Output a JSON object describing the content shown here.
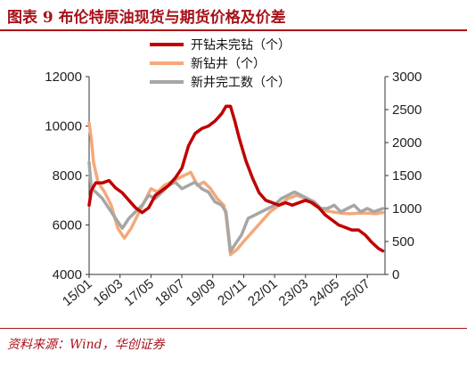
{
  "figure": {
    "title": "图表 9  布伦特原油现货与期货价格及价差",
    "source": "资料来源：Wind，华创证券",
    "accent_color": "#a8121a"
  },
  "chart_data": {
    "type": "line",
    "title": "图表 9  布伦特原油现货与期货价格及价差",
    "xlabel": "",
    "ylabel_left": "",
    "ylabel_right": "",
    "x_ticks": [
      "15/01",
      "16/03",
      "17/05",
      "18/07",
      "19/09",
      "20/11",
      "22/01",
      "23/03",
      "24/05",
      "25/07"
    ],
    "x_range": [
      "2015-01",
      "2026-03"
    ],
    "ylim_left": [
      4000,
      12000
    ],
    "y_ticks_left": [
      "4000",
      "6000",
      "8000",
      "10000",
      "12000"
    ],
    "ylim_right": [
      0,
      3000
    ],
    "y_ticks_right": [
      "0",
      "500",
      "1000",
      "1500",
      "2000",
      "2500",
      "3000"
    ],
    "grid": false,
    "legend_position": "top-center",
    "series": [
      {
        "name": "开钻未完钻（个）",
        "axis": "left",
        "color": "#c00000",
        "points": [
          [
            "2015-01",
            6800
          ],
          [
            "2015-02",
            7400
          ],
          [
            "2015-04",
            7700
          ],
          [
            "2015-07",
            7700
          ],
          [
            "2015-10",
            7800
          ],
          [
            "2016-01",
            7500
          ],
          [
            "2016-04",
            7300
          ],
          [
            "2016-07",
            7000
          ],
          [
            "2016-10",
            6700
          ],
          [
            "2017-01",
            6500
          ],
          [
            "2017-04",
            6700
          ],
          [
            "2017-07",
            7200
          ],
          [
            "2017-10",
            7400
          ],
          [
            "2018-01",
            7600
          ],
          [
            "2018-04",
            7900
          ],
          [
            "2018-07",
            8300
          ],
          [
            "2018-10",
            9200
          ],
          [
            "2019-01",
            9700
          ],
          [
            "2019-04",
            9900
          ],
          [
            "2019-07",
            10000
          ],
          [
            "2019-10",
            10200
          ],
          [
            "2020-01",
            10500
          ],
          [
            "2020-03",
            10800
          ],
          [
            "2020-05",
            10800
          ],
          [
            "2020-07",
            10200
          ],
          [
            "2020-09",
            9500
          ],
          [
            "2020-12",
            8600
          ],
          [
            "2021-03",
            7900
          ],
          [
            "2021-06",
            7300
          ],
          [
            "2021-09",
            7000
          ],
          [
            "2021-12",
            6900
          ],
          [
            "2022-03",
            6800
          ],
          [
            "2022-06",
            6900
          ],
          [
            "2022-09",
            6800
          ],
          [
            "2022-12",
            6900
          ],
          [
            "2023-03",
            7000
          ],
          [
            "2023-06",
            6900
          ],
          [
            "2023-09",
            6700
          ],
          [
            "2023-12",
            6400
          ],
          [
            "2024-03",
            6200
          ],
          [
            "2024-06",
            6000
          ],
          [
            "2024-09",
            5900
          ],
          [
            "2024-12",
            5800
          ],
          [
            "2025-03",
            5800
          ],
          [
            "2025-06",
            5600
          ],
          [
            "2025-09",
            5300
          ],
          [
            "2025-12",
            5050
          ],
          [
            "2026-02",
            4950
          ]
        ]
      },
      {
        "name": "新钻井（个）",
        "axis": "right",
        "color": "#f4a97a",
        "points": [
          [
            "2015-01",
            2300
          ],
          [
            "2015-02",
            2050
          ],
          [
            "2015-03",
            1700
          ],
          [
            "2015-05",
            1400
          ],
          [
            "2015-08",
            1250
          ],
          [
            "2015-11",
            1050
          ],
          [
            "2016-02",
            700
          ],
          [
            "2016-05",
            550
          ],
          [
            "2016-08",
            700
          ],
          [
            "2016-11",
            900
          ],
          [
            "2017-02",
            1100
          ],
          [
            "2017-05",
            1300
          ],
          [
            "2017-08",
            1250
          ],
          [
            "2017-11",
            1350
          ],
          [
            "2018-02",
            1400
          ],
          [
            "2018-05",
            1450
          ],
          [
            "2018-08",
            1500
          ],
          [
            "2018-11",
            1550
          ],
          [
            "2019-02",
            1350
          ],
          [
            "2019-05",
            1400
          ],
          [
            "2019-08",
            1300
          ],
          [
            "2019-11",
            1150
          ],
          [
            "2020-02",
            1050
          ],
          [
            "2020-03",
            900
          ],
          [
            "2020-05",
            300
          ],
          [
            "2020-08",
            380
          ],
          [
            "2020-11",
            500
          ],
          [
            "2021-03",
            650
          ],
          [
            "2021-07",
            800
          ],
          [
            "2021-11",
            950
          ],
          [
            "2022-03",
            1050
          ],
          [
            "2022-07",
            1150
          ],
          [
            "2022-11",
            1200
          ],
          [
            "2023-03",
            1150
          ],
          [
            "2023-07",
            1050
          ],
          [
            "2023-11",
            970
          ],
          [
            "2024-03",
            950
          ],
          [
            "2024-07",
            930
          ],
          [
            "2024-11",
            920
          ],
          [
            "2025-03",
            930
          ],
          [
            "2025-07",
            930
          ],
          [
            "2025-11",
            920
          ],
          [
            "2026-02",
            940
          ]
        ]
      },
      {
        "name": "新井完工数（个）",
        "axis": "right",
        "color": "#a6a6a6",
        "points": [
          [
            "2015-01",
            1700
          ],
          [
            "2015-02",
            1300
          ],
          [
            "2015-04",
            1250
          ],
          [
            "2015-07",
            1150
          ],
          [
            "2015-10",
            1000
          ],
          [
            "2016-01",
            850
          ],
          [
            "2016-04",
            700
          ],
          [
            "2016-07",
            850
          ],
          [
            "2016-10",
            950
          ],
          [
            "2017-01",
            1050
          ],
          [
            "2017-04",
            1200
          ],
          [
            "2017-07",
            1150
          ],
          [
            "2017-10",
            1250
          ],
          [
            "2018-01",
            1350
          ],
          [
            "2018-04",
            1400
          ],
          [
            "2018-07",
            1300
          ],
          [
            "2018-10",
            1350
          ],
          [
            "2019-01",
            1400
          ],
          [
            "2019-04",
            1300
          ],
          [
            "2019-07",
            1250
          ],
          [
            "2019-10",
            1100
          ],
          [
            "2020-01",
            1050
          ],
          [
            "2020-03",
            950
          ],
          [
            "2020-05",
            350
          ],
          [
            "2020-07",
            450
          ],
          [
            "2020-10",
            600
          ],
          [
            "2021-01",
            850
          ],
          [
            "2021-04",
            900
          ],
          [
            "2021-07",
            950
          ],
          [
            "2021-10",
            1000
          ],
          [
            "2022-01",
            1050
          ],
          [
            "2022-04",
            1150
          ],
          [
            "2022-07",
            1200
          ],
          [
            "2022-10",
            1250
          ],
          [
            "2023-01",
            1200
          ],
          [
            "2023-04",
            1150
          ],
          [
            "2023-07",
            1100
          ],
          [
            "2023-10",
            1000
          ],
          [
            "2024-01",
            1000
          ],
          [
            "2024-04",
            1050
          ],
          [
            "2024-07",
            950
          ],
          [
            "2024-10",
            1000
          ],
          [
            "2025-01",
            1050
          ],
          [
            "2025-04",
            950
          ],
          [
            "2025-07",
            1000
          ],
          [
            "2025-10",
            950
          ],
          [
            "2026-02",
            1000
          ]
        ]
      }
    ]
  }
}
